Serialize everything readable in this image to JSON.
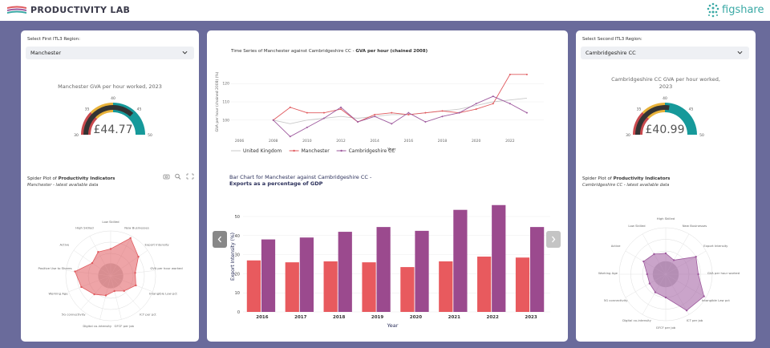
{
  "app": {
    "title": "PRODUCTIVITY LAB",
    "partner_logo_text": "figshare"
  },
  "left": {
    "select_label": "Select First ITL3 Region:",
    "selected": "Manchester",
    "gauge": {
      "title": "Manchester GVA per hour worked, 2023",
      "value_text": "£44.77",
      "value": 44.77,
      "ticks": [
        "30",
        "35",
        "40",
        "45",
        "50"
      ],
      "range": [
        30,
        50
      ]
    },
    "spider": {
      "title_prefix": "Spider Plot of ",
      "title_bold": "Productivity Indicators",
      "subtitle": "Manchester - latest available data",
      "axes": [
        "Low Skilled",
        "New Businesses",
        "Export Intensity",
        "GVA per hour worked",
        "Intangible Law pct",
        "ICT per pct",
        "GFCF per job",
        "Digital co-intensity",
        "5G connectivity",
        "Working Age",
        "Positive Use to Shares",
        "Active",
        "High Skilled"
      ],
      "values": [
        0.6,
        0.95,
        0.75,
        0.55,
        0.6,
        0.45,
        0.35,
        0.45,
        0.55,
        0.7,
        0.8,
        0.5,
        0.6
      ],
      "color": "#e05a5e"
    }
  },
  "right": {
    "select_label": "Select Second ITL3 Region:",
    "selected": "Cambridgeshire CC",
    "gauge": {
      "title": "Cambridgeshire CC GVA per hour worked, 2023",
      "value_text": "£40.99",
      "value": 40.99,
      "ticks": [
        "30",
        "35",
        "40",
        "45",
        "50"
      ],
      "range": [
        30,
        50
      ]
    },
    "spider": {
      "title_prefix": "Spider Plot of ",
      "title_bold": "Productivity Indicators",
      "subtitle": "Cambridgeshire CC - latest available data",
      "axes": [
        "High Skilled",
        "New Businesses",
        "Export Intensity",
        "GVA per hour worked",
        "Intangible Law pct",
        "ICT per job",
        "GFCF per job",
        "Digital co-intensity",
        "5G connectivity",
        "Working Age",
        "Active",
        "Low Skilled"
      ],
      "values": [
        0.45,
        0.35,
        0.75,
        0.7,
        0.95,
        0.9,
        0.5,
        0.45,
        0.4,
        0.4,
        0.55,
        0.5
      ],
      "color": "#9e5a9e"
    }
  },
  "middle": {
    "line_title_prefix": "Time Series of Manchester against Cambridgeshire CC - ",
    "line_title_bold": "GVA per hour (chained 2008)",
    "bar_title_prefix": "Bar Chart for Manchester against Cambridgeshire CC - ",
    "bar_title_bold": "Exports as a percentage of GDP"
  },
  "chart_data": [
    {
      "type": "line",
      "title": "Time Series of Manchester against Cambridgeshire CC - GVA per hour (chained 2008)",
      "xlabel": "Year",
      "ylabel": "GVA per hour (chained 2008) (%)",
      "x": [
        2004,
        2005,
        2006,
        2007,
        2008,
        2009,
        2010,
        2011,
        2012,
        2013,
        2014,
        2015,
        2016,
        2017,
        2018,
        2019,
        2020,
        2021,
        2022,
        2023
      ],
      "xticks": [
        2006,
        2008,
        2010,
        2012,
        2014,
        2016,
        2018,
        2020,
        2022
      ],
      "yticks": [
        100,
        110,
        120
      ],
      "ylim": [
        92,
        128
      ],
      "xlim": [
        2005.5,
        2024
      ],
      "series": [
        {
          "name": "United Kingdom",
          "color": "#c9c9c9",
          "x": [
            2008,
            2009,
            2010,
            2011,
            2012,
            2013,
            2014,
            2015,
            2016,
            2017,
            2018,
            2019,
            2020,
            2021,
            2022,
            2023
          ],
          "values": [
            100,
            98,
            100,
            101,
            102,
            101,
            102,
            103,
            103,
            104,
            105,
            106,
            108,
            110,
            111,
            112
          ]
        },
        {
          "name": "Manchester",
          "color": "#e05a5e",
          "x": [
            2008,
            2009,
            2010,
            2011,
            2012,
            2013,
            2014,
            2015,
            2016,
            2017,
            2018,
            2019,
            2020,
            2021,
            2022,
            2023
          ],
          "values": [
            100,
            107,
            104,
            104,
            106,
            99,
            103,
            104,
            103,
            104,
            105,
            104,
            106,
            109,
            125,
            125
          ]
        },
        {
          "name": "Cambridgeshire CC",
          "color": "#9e5a9e",
          "x": [
            2008,
            2009,
            2010,
            2011,
            2012,
            2013,
            2014,
            2015,
            2016,
            2017,
            2018,
            2019,
            2020,
            2021,
            2022,
            2023
          ],
          "values": [
            100,
            91,
            96,
            101,
            107,
            99,
            102,
            98,
            104,
            99,
            102,
            104,
            109,
            113,
            109,
            104
          ]
        }
      ]
    },
    {
      "type": "bar",
      "title": "Bar Chart for Manchester against Cambridgeshire CC - Exports as a percentage of GDP",
      "xlabel": "Year",
      "ylabel": "Export Intensity (%)",
      "categories": [
        "2016",
        "2017",
        "2018",
        "2019",
        "2020",
        "2021",
        "2022",
        "2023"
      ],
      "ylim": [
        0,
        58
      ],
      "yticks": [
        0,
        10,
        20,
        30,
        40,
        50
      ],
      "series": [
        {
          "name": "Manchester",
          "color": "#e85a5e",
          "values": [
            27,
            26,
            26.5,
            26,
            23.5,
            26.5,
            29,
            28.5
          ]
        },
        {
          "name": "Cambridgeshire CC",
          "color": "#9b4a8e",
          "values": [
            38,
            39,
            42,
            44.5,
            42.5,
            53.5,
            56,
            44.5
          ]
        }
      ]
    }
  ]
}
